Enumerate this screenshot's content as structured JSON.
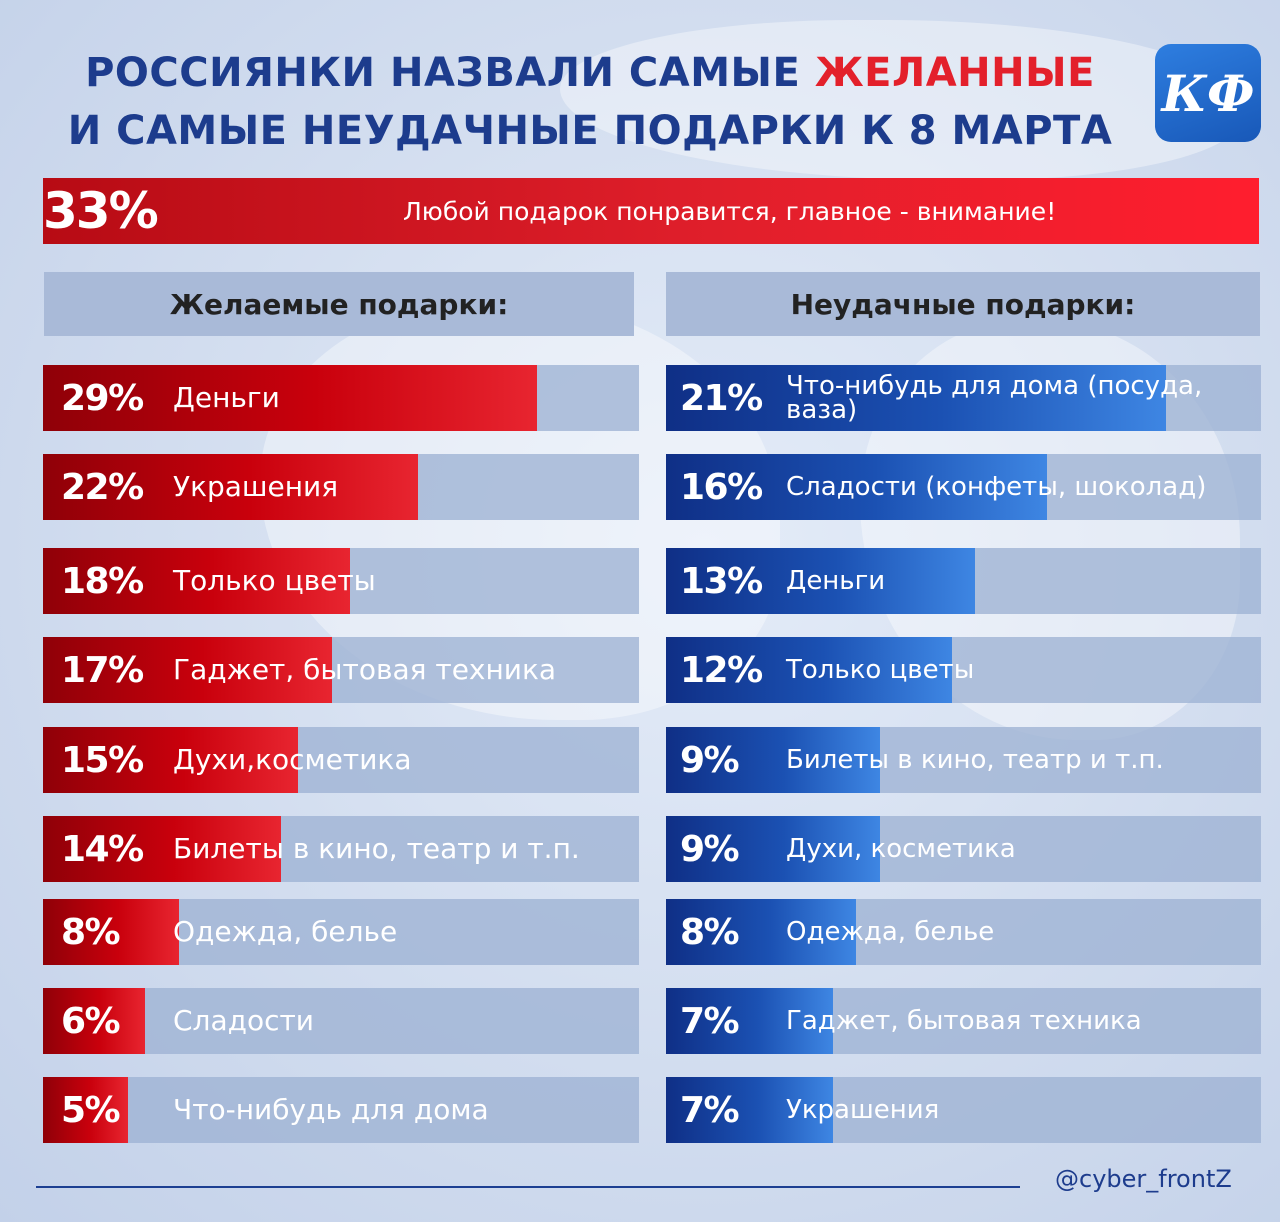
{
  "title": {
    "line1_prefix": "РОССИЯНКИ НАЗВАЛИ САМЫЕ ",
    "line1_highlight": "ЖЕЛАННЫЕ",
    "line2": "И САМЫЕ НЕУДАЧНЫЕ ПОДАРКИ К 8 МАРТА"
  },
  "logo": {
    "text": "КФ",
    "icon": "kf-logo-icon"
  },
  "banner": {
    "percent": "33%",
    "text": "Любой подарок понравится, главное - внимание!"
  },
  "footer": {
    "handle": "@cyber_frontZ"
  },
  "colors": {
    "title_blue": "#1d3c8d",
    "accent_red": "#e3202b",
    "bar_red": "#c9000c",
    "bar_blue": "#1b51b3",
    "track": "#a9bad8"
  },
  "chart_data": [
    {
      "type": "bar",
      "orientation": "horizontal",
      "title": "Желаемые подарки:",
      "unit": "%",
      "xlim": [
        0,
        35
      ],
      "categories": [
        "Деньги",
        "Украшения",
        "Только цветы",
        "Гаджет, бытовая техника",
        "Духи,косметика",
        "Билеты в кино, театр и т.п.",
        "Одежда, белье",
        "Сладости",
        "Что-нибудь для дома"
      ],
      "values": [
        29,
        22,
        18,
        17,
        15,
        14,
        8,
        6,
        5
      ],
      "value_labels": [
        "29%",
        "22%",
        "18%",
        "17%",
        "15%",
        "14%",
        "8%",
        "6%",
        "5%"
      ]
    },
    {
      "type": "bar",
      "orientation": "horizontal",
      "title": "Неудачные подарки:",
      "unit": "%",
      "xlim": [
        0,
        25
      ],
      "categories": [
        "Что-нибудь для дома (посуда, ваза)",
        "Сладости (конфеты, шоколад)",
        "Деньги",
        "Только цветы",
        "Билеты в кино, театр и т.п.",
        "Духи, косметика",
        "Одежда, белье",
        "Гаджет, бытовая техника",
        "Украшения"
      ],
      "values": [
        21,
        16,
        13,
        12,
        9,
        9,
        8,
        7,
        7
      ],
      "value_labels": [
        "21%",
        "16%",
        "13%",
        "12%",
        "9%",
        "9%",
        "8%",
        "7%",
        "7%"
      ]
    }
  ]
}
